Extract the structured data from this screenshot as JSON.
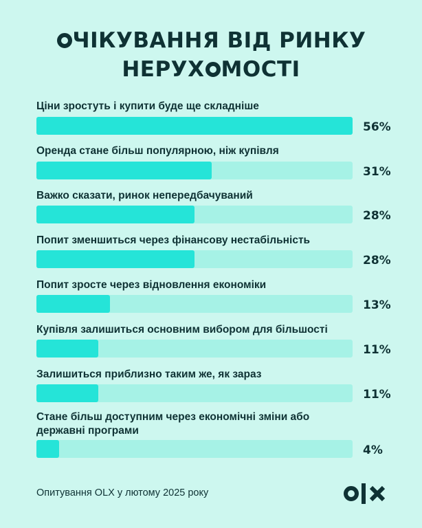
{
  "title": {
    "line1_rest": "ЧІКУВАННЯ ВІД РИНКУ",
    "line2_start": "НЕРУХ",
    "line2_end": "МОСТІ"
  },
  "chart_data": {
    "type": "bar",
    "orientation": "horizontal",
    "xlim": [
      0,
      56
    ],
    "categories": [
      "Ціни зростуть і купити буде ще складніше",
      "Оренда стане більш популярною, ніж купівля",
      "Важко сказати, ринок непередбачуваний",
      "Попит зменшиться через фінансову нестабільність",
      "Попит зросте через відновлення економіки",
      "Купівля залишиться основним вибором для більшості",
      "Залишиться приблизно таким же, як зараз",
      "Стане більш доступним через економічні зміни або державні програми"
    ],
    "values": [
      56,
      31,
      28,
      28,
      13,
      11,
      11,
      4
    ],
    "value_labels": [
      "56%",
      "31%",
      "28%",
      "28%",
      "13%",
      "11%",
      "11%",
      "4%"
    ],
    "colors": {
      "fill": "#25e4d8",
      "track": "#a6f2e6",
      "background": "#cdf7ef",
      "text": "#0f3234"
    }
  },
  "footer": {
    "source": "Опитування OLX у лютому 2025 року"
  },
  "logo": {
    "brand": "OLX",
    "icon": "olx-logo-icon"
  }
}
